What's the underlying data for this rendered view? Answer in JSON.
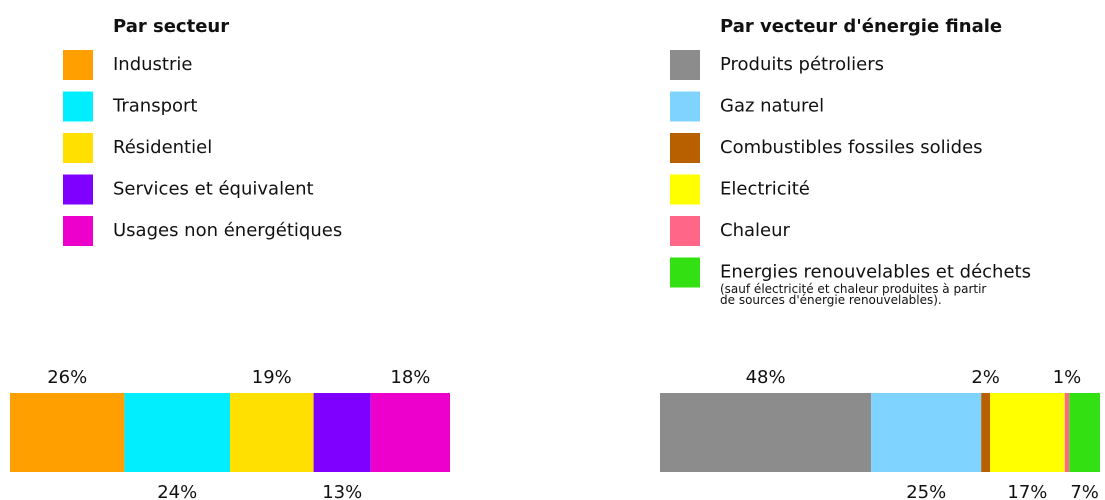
{
  "chart_data": [
    {
      "type": "stacked-bar",
      "title": "Par secteur",
      "series": [
        {
          "name": "Industrie",
          "color": "#ff9f00",
          "values": [
            26
          ],
          "value_labels": [
            "26%"
          ]
        },
        {
          "name": "Transport",
          "color": "#00eeff",
          "values": [
            24
          ],
          "value_labels": [
            "24%"
          ]
        },
        {
          "name": "Résidentiel",
          "color": "#ffe000",
          "values": [
            19
          ],
          "value_labels": [
            "19%"
          ]
        },
        {
          "name": "Services et équivalent",
          "color": "#7f00ff",
          "values": [
            13
          ],
          "value_labels": [
            "13%"
          ]
        },
        {
          "name": "Usages non énergétiques",
          "color": "#ee00cc",
          "values": [
            18
          ],
          "value_labels": [
            "18%"
          ]
        }
      ]
    },
    {
      "type": "stacked-bar",
      "title": "Par vecteur d'énergie finale",
      "series": [
        {
          "name": "Produits pétroliers",
          "color": "#8c8c8c",
          "values": [
            48
          ],
          "value_labels": [
            "48%"
          ]
        },
        {
          "name": "Gaz naturel",
          "color": "#7fd4ff",
          "values": [
            25
          ],
          "value_labels": [
            "25%"
          ]
        },
        {
          "name": "Combustibles fossiles solides",
          "color": "#b86000",
          "values": [
            2
          ],
          "value_labels": [
            "2%"
          ]
        },
        {
          "name": "Electricité",
          "color": "#ffff00",
          "values": [
            17
          ],
          "value_labels": [
            "17%"
          ]
        },
        {
          "name": "Chaleur",
          "color": "#ff6688",
          "values": [
            1
          ],
          "value_labels": [
            "1%"
          ]
        },
        {
          "name": "Energies renouvelables et déchets",
          "color": "#33e011",
          "values": [
            7
          ],
          "value_labels": [
            "7%"
          ],
          "annotation": [
            "(sauf électricité et chaleur produites à partir",
            "de sources d'énergie renouvelables)."
          ]
        }
      ]
    }
  ]
}
